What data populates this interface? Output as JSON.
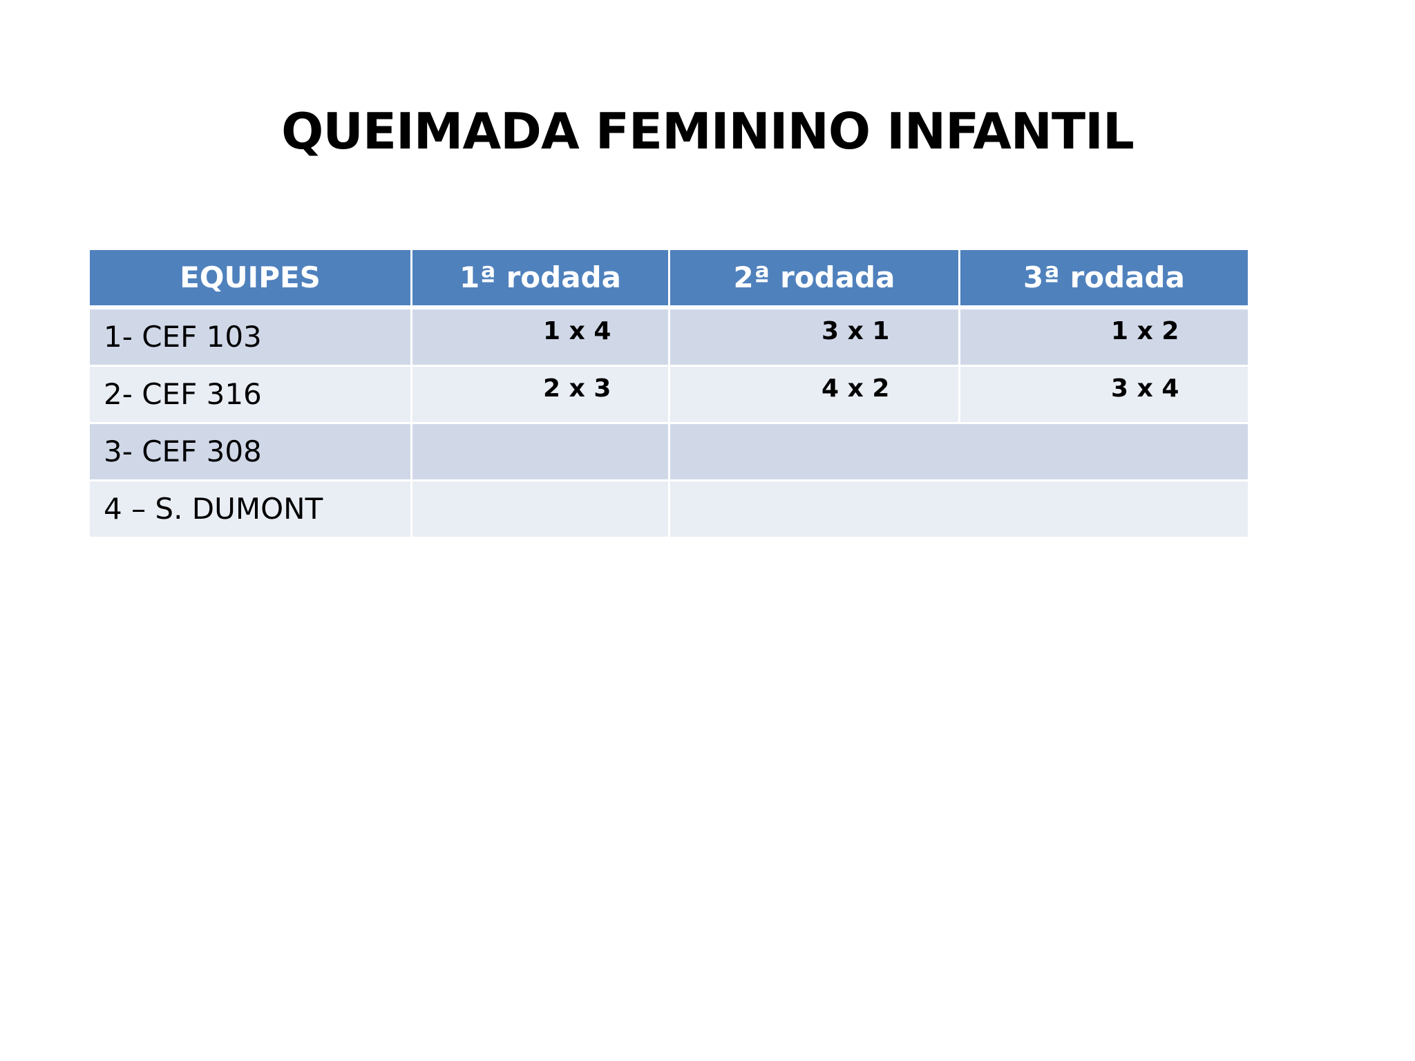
{
  "title": "QUEIMADA FEMININO INFANTIL",
  "table": {
    "headers": [
      "EQUIPES",
      "1ª rodada",
      "2ª rodada",
      "3ª rodada"
    ],
    "rows": [
      {
        "team": "1- CEF 103",
        "matches": [
          "1 x 4",
          "3 x 1",
          "1 x 2"
        ]
      },
      {
        "team": "2- CEF 316",
        "matches": [
          "2 x 3",
          "4 x 2",
          "3 x 4"
        ]
      },
      {
        "team": "3- CEF 308",
        "matches": [
          "",
          ""
        ]
      },
      {
        "team": "4 – S. DUMONT",
        "matches": [
          "",
          ""
        ]
      }
    ]
  },
  "colors": {
    "header_bg": "#4f81bd",
    "row_dark": "#d0d8e8",
    "row_light": "#e9edf4"
  }
}
